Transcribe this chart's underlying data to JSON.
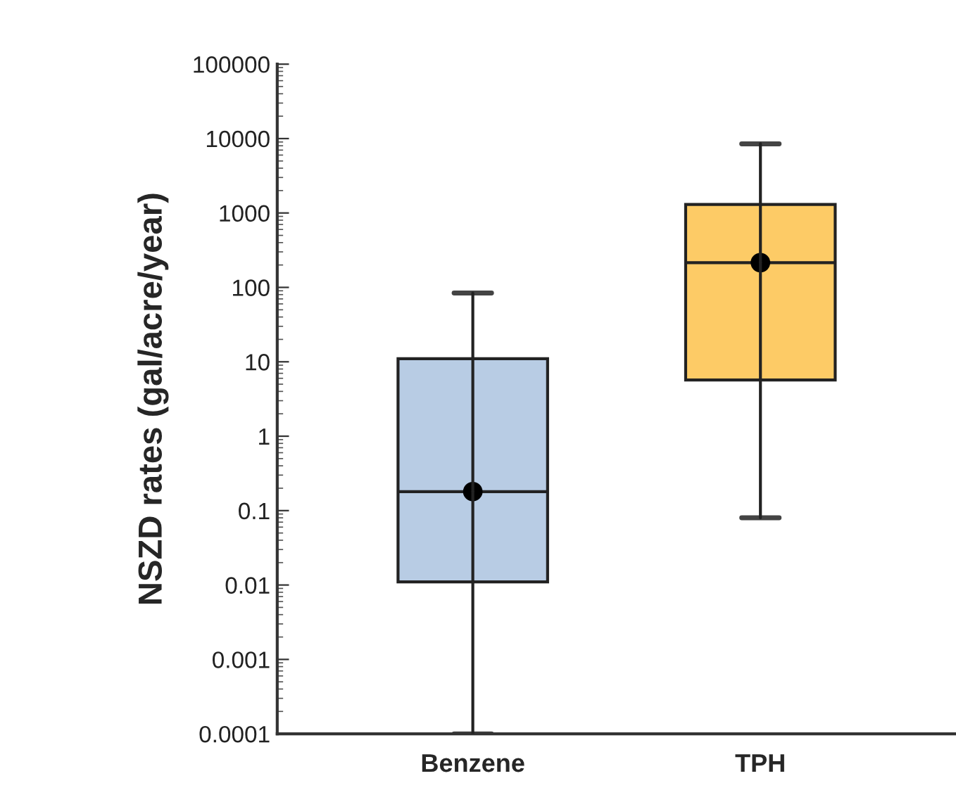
{
  "chart_data": {
    "type": "box",
    "ylabel": "NSZD rates (gal/acre/year)",
    "categories": [
      "Benzene",
      "TPH"
    ],
    "colors": [
      "#b8cce4",
      "#fdcb66"
    ],
    "boxes": [
      {
        "low": 0.0001,
        "q1": 0.011,
        "median": 0.18,
        "q3": 11,
        "high": 84,
        "mean": 0.18
      },
      {
        "low": 0.08,
        "q1": 5.7,
        "median": 215,
        "q3": 1300,
        "high": 8500,
        "mean": 215
      }
    ],
    "log": true,
    "ylim": [
      0.0001,
      100000
    ],
    "yticks": [
      {
        "value": 0.0001,
        "label": "0.0001"
      },
      {
        "value": 0.001,
        "label": "0.001"
      },
      {
        "value": 0.01,
        "label": "0.01"
      },
      {
        "value": 0.1,
        "label": "0.1"
      },
      {
        "value": 1,
        "label": "1"
      },
      {
        "value": 10,
        "label": "10"
      },
      {
        "value": 100,
        "label": "100"
      },
      {
        "value": 1000,
        "label": "1000"
      },
      {
        "value": 10000,
        "label": "10000"
      },
      {
        "value": 100000,
        "label": "100000"
      }
    ],
    "grid": false,
    "legend": false
  }
}
